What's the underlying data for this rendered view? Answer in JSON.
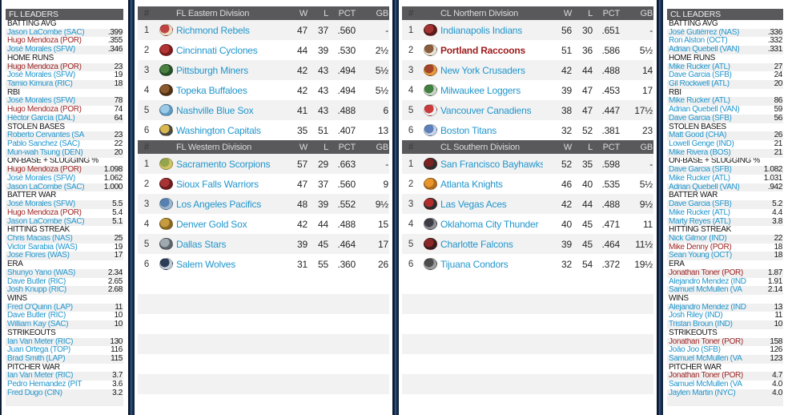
{
  "colors": {
    "page_bg": "#0e1d36",
    "header_bar": "#59595c",
    "link_blue": "#2196cd",
    "portland_red": "#a01c1c",
    "row_stripe": "#f2f2f2"
  },
  "standings_columns": {
    "rank": "#",
    "wins": "W",
    "losses": "L",
    "pct": "PCT",
    "gb": "GB"
  },
  "leader_panels": [
    {
      "id": "fl",
      "title": "FL LEADERS",
      "sections": [
        {
          "label": "BATTING AVG",
          "entries": [
            {
              "name": "Jason LaCombe (SAC)",
              "value": ".399",
              "style": "blue"
            },
            {
              "name": "Hugo Mendoza (POR)",
              "value": ".355",
              "style": "red"
            },
            {
              "name": "José Morales (SFW)",
              "value": ".346",
              "style": "blue"
            }
          ]
        },
        {
          "label": "HOME RUNS",
          "entries": [
            {
              "name": "Hugo Mendoza (POR)",
              "value": "23",
              "style": "red"
            },
            {
              "name": "José Morales (SFW)",
              "value": "19",
              "style": "blue"
            },
            {
              "name": "Tamio Kimura (RIC)",
              "value": "18",
              "style": "blue"
            }
          ]
        },
        {
          "label": "RBI",
          "entries": [
            {
              "name": "José Morales (SFW)",
              "value": "78",
              "style": "blue"
            },
            {
              "name": "Hugo Mendoza (POR)",
              "value": "74",
              "style": "red"
            },
            {
              "name": "Héctor García (DAL)",
              "value": "64",
              "style": "blue"
            }
          ]
        },
        {
          "label": "STOLEN BASES",
          "entries": [
            {
              "name": "Roberto Cervantes (SA",
              "value": "23",
              "style": "blue"
            },
            {
              "name": "Pablo Sanchez (SAC)",
              "value": "22",
              "style": "blue"
            },
            {
              "name": "Mun-wah Tsung (DEN)",
              "value": "20",
              "style": "blue"
            }
          ]
        },
        {
          "label": "ON-BASE + SLUGGING %",
          "entries": [
            {
              "name": "Hugo Mendoza (POR)",
              "value": "1.098",
              "style": "red"
            },
            {
              "name": "José Morales (SFW)",
              "value": "1.062",
              "style": "blue"
            },
            {
              "name": "Jason LaCombe (SAC)",
              "value": "1.000",
              "style": "blue"
            }
          ]
        },
        {
          "label": "BATTER WAR",
          "entries": [
            {
              "name": "José Morales (SFW)",
              "value": "5.5",
              "style": "blue"
            },
            {
              "name": "Hugo Mendoza (POR)",
              "value": "5.4",
              "style": "red"
            },
            {
              "name": "Jason LaCombe (SAC)",
              "value": "5.1",
              "style": "blue"
            }
          ]
        },
        {
          "label": "HITTING STREAK",
          "entries": [
            {
              "name": "Chris Macias (NAS)",
              "value": "25",
              "style": "blue"
            },
            {
              "name": "Victor Sarabia (WAS)",
              "value": "19",
              "style": "blue"
            },
            {
              "name": "Jose Flores (WAS)",
              "value": "17",
              "style": "blue"
            }
          ]
        },
        {
          "label": "ERA",
          "entries": [
            {
              "name": "Shunyo Yano (WAS)",
              "value": "2.34",
              "style": "blue"
            },
            {
              "name": "Dave Butler (RIC)",
              "value": "2.65",
              "style": "blue"
            },
            {
              "name": "Josh Knupp (RIC)",
              "value": "2.68",
              "style": "blue"
            }
          ]
        },
        {
          "label": "WINS",
          "entries": [
            {
              "name": "Fred O'Quinn (LAP)",
              "value": "11",
              "style": "blue"
            },
            {
              "name": "Dave Butler (RIC)",
              "value": "10",
              "style": "blue"
            },
            {
              "name": "William Kay (SAC)",
              "value": "10",
              "style": "blue"
            }
          ]
        },
        {
          "label": "STRIKEOUTS",
          "entries": [
            {
              "name": "Ian Van Meter (RIC)",
              "value": "130",
              "style": "blue"
            },
            {
              "name": "Juan Ortega (TOP)",
              "value": "116",
              "style": "blue"
            },
            {
              "name": "Brad Smith (LAP)",
              "value": "115",
              "style": "blue"
            }
          ]
        },
        {
          "label": "PITCHER WAR",
          "entries": [
            {
              "name": "Ian Van Meter (RIC)",
              "value": "3.7",
              "style": "blue"
            },
            {
              "name": "Pedro Hernandez (PIT",
              "value": "3.6",
              "style": "blue"
            },
            {
              "name": "Fred Dugo (CIN)",
              "value": "3.2",
              "style": "blue"
            }
          ]
        }
      ]
    },
    {
      "id": "cl",
      "title": "CL LEADERS",
      "sections": [
        {
          "label": "BATTING AVG",
          "entries": [
            {
              "name": "José Gutiérrez (NAS)",
              "value": ".336",
              "style": "blue"
            },
            {
              "name": "Ron Alston (OCT)",
              "value": ".332",
              "style": "blue"
            },
            {
              "name": "Adrian Quebell (VAN)",
              "value": ".331",
              "style": "blue"
            }
          ]
        },
        {
          "label": "HOME RUNS",
          "entries": [
            {
              "name": "Mike Rucker (ATL)",
              "value": "27",
              "style": "blue"
            },
            {
              "name": "Dave Garcia (SFB)",
              "value": "24",
              "style": "blue"
            },
            {
              "name": "Gil Rockwell (ATL)",
              "value": "20",
              "style": "blue"
            }
          ]
        },
        {
          "label": "RBI",
          "entries": [
            {
              "name": "Mike Rucker (ATL)",
              "value": "86",
              "style": "blue"
            },
            {
              "name": "Adrian Quebell (VAN)",
              "value": "59",
              "style": "blue"
            },
            {
              "name": "Dave Garcia (SFB)",
              "value": "56",
              "style": "blue"
            }
          ]
        },
        {
          "label": "STOLEN BASES",
          "entries": [
            {
              "name": "Matt Good (CHA)",
              "value": "26",
              "style": "blue"
            },
            {
              "name": "Lowell Genge (IND)",
              "value": "21",
              "style": "blue"
            },
            {
              "name": "Mike Rivera (BOS)",
              "value": "21",
              "style": "blue"
            }
          ]
        },
        {
          "label": "ON-BASE + SLUGGING %",
          "entries": [
            {
              "name": "Dave Garcia (SFB)",
              "value": "1.082",
              "style": "blue"
            },
            {
              "name": "Mike Rucker (ATL)",
              "value": "1.031",
              "style": "blue"
            },
            {
              "name": "Adrian Quebell (VAN)",
              "value": ".942",
              "style": "blue"
            }
          ]
        },
        {
          "label": "BATTER WAR",
          "entries": [
            {
              "name": "Dave Garcia (SFB)",
              "value": "5.2",
              "style": "blue"
            },
            {
              "name": "Mike Rucker (ATL)",
              "value": "4.4",
              "style": "blue"
            },
            {
              "name": "Marty Reyes (ATL)",
              "value": "3.8",
              "style": "blue"
            }
          ]
        },
        {
          "label": "HITTING STREAK",
          "entries": [
            {
              "name": "Nick Gilmor (IND)",
              "value": "22",
              "style": "blue"
            },
            {
              "name": "Mike Denny (POR)",
              "value": "18",
              "style": "red"
            },
            {
              "name": "Sean Young (OCT)",
              "value": "18",
              "style": "blue"
            }
          ]
        },
        {
          "label": "ERA",
          "entries": [
            {
              "name": "Jonathan Toner (POR)",
              "value": "1.87",
              "style": "red"
            },
            {
              "name": "Alejandro Mendez (IND",
              "value": "1.91",
              "style": "blue"
            },
            {
              "name": "Samuel McMullen (VA",
              "value": "2.14",
              "style": "blue"
            }
          ]
        },
        {
          "label": "WINS",
          "entries": [
            {
              "name": "Alejandro Mendez (IND",
              "value": "13",
              "style": "blue"
            },
            {
              "name": "Josh Riley (IND)",
              "value": "11",
              "style": "blue"
            },
            {
              "name": "Tristan Broun (IND)",
              "value": "10",
              "style": "blue"
            }
          ]
        },
        {
          "label": "STRIKEOUTS",
          "entries": [
            {
              "name": "Jonathan Toner (POR)",
              "value": "158",
              "style": "red"
            },
            {
              "name": "João Joo (SFB)",
              "value": "126",
              "style": "blue"
            },
            {
              "name": "Samuel McMullen (VA",
              "value": "123",
              "style": "blue"
            }
          ]
        },
        {
          "label": "PITCHER WAR",
          "entries": [
            {
              "name": "Jonathan Toner (POR)",
              "value": "4.7",
              "style": "red"
            },
            {
              "name": "Samuel McMullen (VA",
              "value": "4.0",
              "style": "blue"
            },
            {
              "name": "Jaylen Martin (NYC)",
              "value": "4.0",
              "style": "blue"
            }
          ]
        }
      ]
    }
  ],
  "standings_groups": [
    {
      "id": "fl",
      "divisions": [
        {
          "title": "FL Eastern Division",
          "teams": [
            {
              "rank": "1",
              "name": "Richmond Rebels",
              "w": "47",
              "l": "37",
              "pct": ".560",
              "gb": "-",
              "highlight": false,
              "logo": [
                "#c04343",
                "#ecdfc3"
              ]
            },
            {
              "rank": "2",
              "name": "Cincinnati Cyclones",
              "w": "44",
              "l": "39",
              "pct": ".530",
              "gb": "2½",
              "highlight": false,
              "logo": [
                "#b23434",
                "#7d1d1d"
              ]
            },
            {
              "rank": "3",
              "name": "Pittsburgh Miners",
              "w": "42",
              "l": "43",
              "pct": ".494",
              "gb": "5½",
              "highlight": false,
              "logo": [
                "#4b8040",
                "#26512a"
              ]
            },
            {
              "rank": "4",
              "name": "Topeka Buffaloes",
              "w": "42",
              "l": "43",
              "pct": ".494",
              "gb": "5½",
              "highlight": false,
              "logo": [
                "#8a5a2e",
                "#4f3115"
              ]
            },
            {
              "rank": "5",
              "name": "Nashville Blue Sox",
              "w": "41",
              "l": "43",
              "pct": ".488",
              "gb": "6",
              "highlight": false,
              "logo": [
                "#9cc9e6",
                "#5e9bc4"
              ]
            },
            {
              "rank": "6",
              "name": "Washington Capitals",
              "w": "35",
              "l": "51",
              "pct": ".407",
              "gb": "13",
              "highlight": false,
              "logo": [
                "#d9b84d",
                "#4a4a4a"
              ]
            }
          ]
        },
        {
          "title": "FL Western Division",
          "teams": [
            {
              "rank": "1",
              "name": "Sacramento Scorpions",
              "w": "57",
              "l": "29",
              "pct": ".663",
              "gb": "-",
              "highlight": false,
              "logo": [
                "#93a64e",
                "#d6c464"
              ]
            },
            {
              "rank": "2",
              "name": "Sioux Falls Warriors",
              "w": "47",
              "l": "37",
              "pct": ".560",
              "gb": "9",
              "highlight": false,
              "logo": [
                "#a83434",
                "#6d1d1d"
              ]
            },
            {
              "rank": "3",
              "name": "Los Angeles Pacifics",
              "w": "48",
              "l": "39",
              "pct": ".552",
              "gb": "9½",
              "highlight": false,
              "logo": [
                "#5580b0",
                "#9db7cf"
              ]
            },
            {
              "rank": "4",
              "name": "Denver Gold Sox",
              "w": "42",
              "l": "44",
              "pct": ".488",
              "gb": "15",
              "highlight": false,
              "logo": [
                "#c79b3f",
                "#8a6a22"
              ]
            },
            {
              "rank": "5",
              "name": "Dallas Stars",
              "w": "39",
              "l": "45",
              "pct": ".464",
              "gb": "17",
              "highlight": false,
              "logo": [
                "#a0a8b0",
                "#5c646c"
              ]
            },
            {
              "rank": "6",
              "name": "Salem Wolves",
              "w": "31",
              "l": "55",
              "pct": ".360",
              "gb": "26",
              "highlight": false,
              "logo": [
                "#2d3d57",
                "#c3ccd6"
              ]
            }
          ]
        }
      ]
    },
    {
      "id": "cl",
      "divisions": [
        {
          "title": "CL Northern Division",
          "teams": [
            {
              "rank": "1",
              "name": "Indianapolis Indians",
              "w": "56",
              "l": "30",
              "pct": ".651",
              "gb": "-",
              "highlight": false,
              "logo": [
                "#a33232",
                "#5e1b1b"
              ]
            },
            {
              "rank": "2",
              "name": "Portland Raccoons",
              "w": "51",
              "l": "36",
              "pct": ".586",
              "gb": "5½",
              "highlight": true,
              "logo": [
                "#8a5e3c",
                "#e9e4d9"
              ]
            },
            {
              "rank": "3",
              "name": "New York Crusaders",
              "w": "42",
              "l": "44",
              "pct": ".488",
              "gb": "14",
              "highlight": false,
              "logo": [
                "#a4442a",
                "#e59a3e"
              ]
            },
            {
              "rank": "4",
              "name": "Milwaukee Loggers",
              "w": "39",
              "l": "47",
              "pct": ".453",
              "gb": "17",
              "highlight": false,
              "logo": [
                "#41803f",
                "#cbd3ca"
              ]
            },
            {
              "rank": "5",
              "name": "Vancouver Canadiens",
              "w": "38",
              "l": "47",
              "pct": ".447",
              "gb": "17½",
              "highlight": false,
              "logo": [
                "#ca3b3b",
                "#f1f1f1"
              ]
            },
            {
              "rank": "6",
              "name": "Boston Titans",
              "w": "32",
              "l": "52",
              "pct": ".381",
              "gb": "23",
              "highlight": false,
              "logo": [
                "#5d7fba",
                "#cad6e9"
              ]
            }
          ]
        },
        {
          "title": "CL Southern Division",
          "teams": [
            {
              "rank": "1",
              "name": "San Francisco Bayhawks",
              "w": "52",
              "l": "35",
              "pct": ".598",
              "gb": "-",
              "highlight": false,
              "logo": [
                "#7d2222",
                "#2e2e2e"
              ]
            },
            {
              "rank": "2",
              "name": "Atlanta Knights",
              "w": "46",
              "l": "40",
              "pct": ".535",
              "gb": "5½",
              "highlight": false,
              "logo": [
                "#e8962c",
                "#b06d1e"
              ]
            },
            {
              "rank": "3",
              "name": "Las Vegas Aces",
              "w": "42",
              "l": "44",
              "pct": ".488",
              "gb": "9½",
              "highlight": false,
              "logo": [
                "#b22c2c",
                "#2e2e2e"
              ]
            },
            {
              "rank": "4",
              "name": "Oklahoma City Thunder",
              "w": "40",
              "l": "45",
              "pct": ".471",
              "gb": "11",
              "highlight": false,
              "logo": [
                "#3d3d46",
                "#8d8d96"
              ]
            },
            {
              "rank": "5",
              "name": "Charlotte Falcons",
              "w": "39",
              "l": "45",
              "pct": ".464",
              "gb": "11½",
              "highlight": false,
              "logo": [
                "#8c2727",
                "#3d1d1d"
              ]
            },
            {
              "rank": "6",
              "name": "Tijuana Condors",
              "w": "32",
              "l": "54",
              "pct": ".372",
              "gb": "19½",
              "highlight": false,
              "logo": [
                "#4d4d4d",
                "#9d9d9d"
              ]
            }
          ]
        }
      ]
    }
  ]
}
